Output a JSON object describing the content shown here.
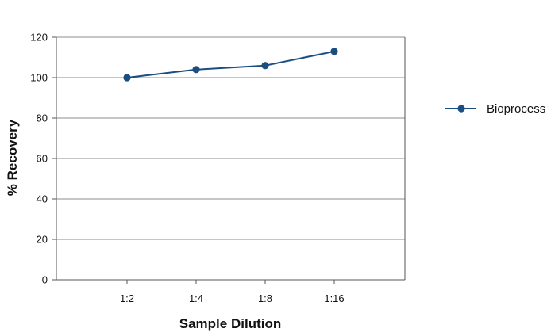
{
  "chart_data": {
    "type": "line",
    "title": "",
    "xlabel": "Sample Dilution",
    "ylabel": "% Recovery",
    "categories": [
      "1:2",
      "1:4",
      "1:8",
      "1:16"
    ],
    "ylim": [
      0,
      120
    ],
    "yticks": [
      0,
      20,
      40,
      60,
      80,
      100,
      120
    ],
    "grid": true,
    "legend_position": "right",
    "series": [
      {
        "name": "Bioprocess",
        "values": [
          100,
          104,
          106,
          113
        ],
        "color": "#1a4d80",
        "marker": "circle"
      }
    ]
  }
}
